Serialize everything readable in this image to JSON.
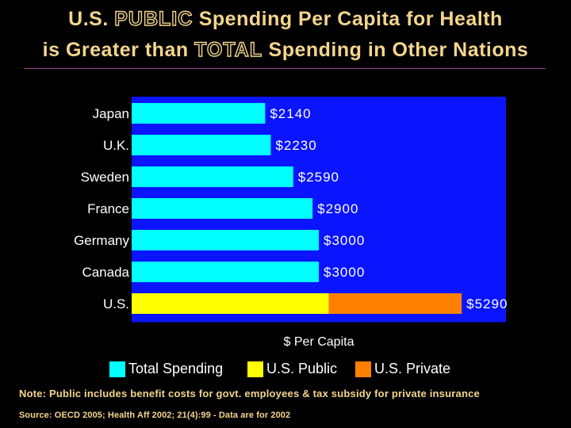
{
  "title": {
    "line1": {
      "pre": "U.S. ",
      "emph": "PUBLIC",
      "post": " Spending Per Capita for Health"
    },
    "line2": {
      "pre": "is Greater than ",
      "emph": "TOTAL",
      "post": " Spending in Other Nations"
    }
  },
  "colors": {
    "background": "#000000",
    "plot_area": "#0A14FF",
    "total": "#00FFFF",
    "us_public": "#FFFF00",
    "us_private": "#FF8000",
    "title_text": "#F4D58D",
    "divider": "#9B3A8E"
  },
  "legend": {
    "total_label": "Total Spending",
    "public_label": "U.S. Public",
    "private_label": "U.S. Private"
  },
  "note": "Note: Public includes benefit costs for govt. employees & tax subsidy for private insurance",
  "source": "Source: OECD 2005; Health Aff 2002; 21(4):99 - Data are for 2002",
  "chart_data": {
    "type": "bar",
    "orientation": "horizontal",
    "stacked": true,
    "xlabel": "$ Per Capita",
    "xlim": [
      0,
      6000
    ],
    "x_ticks_labeled": false,
    "grid": false,
    "legend_position": "bottom",
    "categories": [
      "Japan",
      "U.K.",
      "Sweden",
      "France",
      "Germany",
      "Canada",
      "U.S."
    ],
    "series": [
      {
        "name": "Total Spending",
        "values": [
          2140,
          2230,
          2590,
          2900,
          3000,
          3000,
          null
        ]
      },
      {
        "name": "U.S. Public",
        "values": [
          null,
          null,
          null,
          null,
          null,
          null,
          3160
        ]
      },
      {
        "name": "U.S. Private",
        "values": [
          null,
          null,
          null,
          null,
          null,
          null,
          2130
        ]
      }
    ],
    "data_labels": [
      "$2140",
      "$2230",
      "$2590",
      "$2900",
      "$3000",
      "$3000",
      "$5290"
    ]
  }
}
